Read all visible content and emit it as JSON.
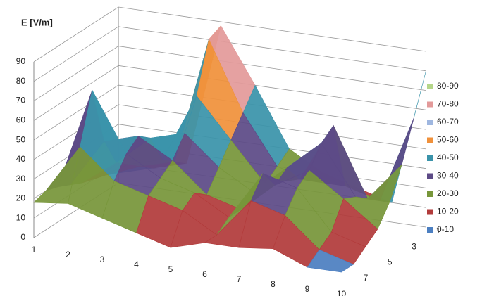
{
  "chart_data": {
    "type": "surface",
    "title": "E [V/m]",
    "categories": [
      "1",
      "2",
      "3",
      "4",
      "5",
      "6",
      "7",
      "8",
      "9",
      "10"
    ],
    "series": [
      {
        "name": "1",
        "values": [
          5,
          10,
          15,
          88,
          60,
          30,
          20,
          15,
          10,
          80
        ]
      },
      {
        "name": null,
        "values": [
          8,
          15,
          20,
          85,
          50,
          25,
          20,
          20,
          15,
          60
        ]
      },
      {
        "name": "3",
        "values": [
          10,
          20,
          25,
          60,
          40,
          20,
          25,
          55,
          20,
          40
        ]
      },
      {
        "name": null,
        "values": [
          12,
          25,
          40,
          45,
          30,
          20,
          35,
          50,
          25,
          25
        ]
      },
      {
        "name": "5",
        "values": [
          15,
          40,
          45,
          35,
          20,
          15,
          30,
          40,
          28,
          15
        ]
      },
      {
        "name": null,
        "values": [
          18,
          70,
          40,
          30,
          25,
          15,
          40,
          35,
          15,
          10
        ]
      },
      {
        "name": "7",
        "values": [
          20,
          45,
          30,
          25,
          20,
          10,
          30,
          25,
          10,
          5
        ]
      },
      {
        "name": null,
        "values": [
          18,
          20,
          15,
          10,
          5,
          10,
          10,
          12,
          5,
          5
        ]
      }
    ],
    "zlim": [
      0,
      90
    ],
    "zticks": [
      0,
      10,
      20,
      30,
      40,
      50,
      60,
      70,
      80,
      90
    ],
    "grid": true,
    "legend": {
      "position": "right",
      "items": [
        {
          "name": "80-90",
          "color": "#b5d68a"
        },
        {
          "name": "70-80",
          "color": "#e39a9a"
        },
        {
          "name": "60-70",
          "color": "#9fb7e0"
        },
        {
          "name": "50-60",
          "color": "#f0913b"
        },
        {
          "name": "40-50",
          "color": "#3a93aa"
        },
        {
          "name": "30-40",
          "color": "#5c4a86"
        },
        {
          "name": "20-30",
          "color": "#77963a"
        },
        {
          "name": "10-20",
          "color": "#b23b3b"
        },
        {
          "name": "0-10",
          "color": "#4c7fc1"
        }
      ]
    }
  }
}
